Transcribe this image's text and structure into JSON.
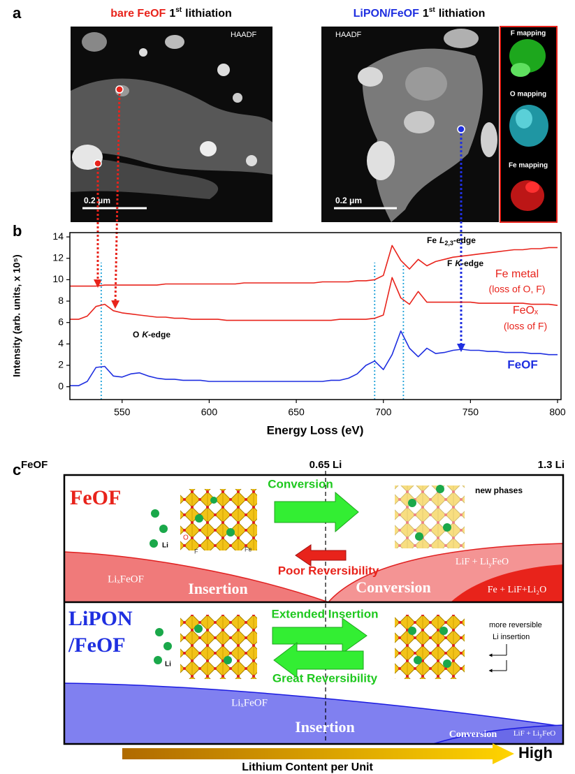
{
  "panel_labels": {
    "a": "a",
    "b": "b",
    "c": "c"
  },
  "panel_a": {
    "left": {
      "title": {
        "sample": "bare FeOF",
        "ordinal": "1",
        "suffix": "st",
        "rest": "lithiation"
      },
      "detector": "HAADF",
      "scale_bar": "0.2 μm"
    },
    "right": {
      "title": {
        "sample": "LiPON/FeOF",
        "ordinal": "1",
        "suffix": "st",
        "rest": "lithiation"
      },
      "detector": "HAADF",
      "scale_bar": "0.2 μm",
      "maps": [
        "F mapping",
        "O mapping",
        "Fe mapping"
      ]
    }
  },
  "chart_data": {
    "type": "line",
    "x_label": "Energy Loss (eV)",
    "y_label": "Intensity (arb. units, x 10⁵)",
    "xlim": [
      520,
      802
    ],
    "ylim": [
      -1.2,
      14.4
    ],
    "xticks": [
      550,
      600,
      650,
      700,
      750,
      800
    ],
    "yticks": [
      0,
      2,
      4,
      6,
      8,
      10,
      12,
      14
    ],
    "vlines": [
      538,
      695,
      711.5
    ],
    "edge_labels": [
      {
        "element": "O",
        "shell": "K",
        "suffix": "-edge"
      },
      {
        "element": "F",
        "shell": "K",
        "suffix": "-edge"
      },
      {
        "element": "Fe",
        "shell": "L",
        "sub": "2,3",
        "suffix": "-edge"
      }
    ],
    "x": [
      520,
      525,
      530,
      535,
      540,
      545,
      550,
      555,
      560,
      565,
      570,
      575,
      580,
      585,
      590,
      595,
      600,
      605,
      610,
      615,
      620,
      625,
      630,
      635,
      640,
      645,
      650,
      655,
      660,
      665,
      670,
      675,
      680,
      685,
      690,
      695,
      700,
      705,
      710,
      715,
      720,
      725,
      730,
      735,
      740,
      745,
      750,
      755,
      760,
      765,
      770,
      775,
      780,
      785,
      790,
      795,
      800
    ],
    "series": [
      {
        "name": "Fe metal",
        "note": "(loss of O, F)",
        "color": "#e8231b",
        "values": [
          9.4,
          9.4,
          9.4,
          9.4,
          9.5,
          9.5,
          9.5,
          9.5,
          9.5,
          9.5,
          9.5,
          9.6,
          9.6,
          9.6,
          9.6,
          9.6,
          9.6,
          9.6,
          9.6,
          9.6,
          9.7,
          9.7,
          9.7,
          9.7,
          9.7,
          9.7,
          9.7,
          9.7,
          9.7,
          9.8,
          9.8,
          9.8,
          9.8,
          9.9,
          9.9,
          10.0,
          10.4,
          13.2,
          11.8,
          11.0,
          11.9,
          11.3,
          11.7,
          11.9,
          12.1,
          12.2,
          12.3,
          12.4,
          12.5,
          12.6,
          12.7,
          12.8,
          12.8,
          12.9,
          12.9,
          13.0,
          13.0
        ]
      },
      {
        "name": "FeOₓ",
        "note": "(loss of F)",
        "color": "#e8231b",
        "values": [
          6.3,
          6.3,
          6.6,
          7.5,
          7.7,
          7.1,
          6.9,
          6.8,
          6.7,
          6.6,
          6.5,
          6.5,
          6.4,
          6.4,
          6.3,
          6.3,
          6.3,
          6.3,
          6.2,
          6.2,
          6.2,
          6.2,
          6.2,
          6.2,
          6.2,
          6.2,
          6.2,
          6.2,
          6.2,
          6.2,
          6.2,
          6.3,
          6.3,
          6.3,
          6.3,
          6.4,
          6.7,
          10.2,
          8.3,
          7.7,
          8.9,
          7.9,
          7.9,
          7.9,
          7.9,
          7.9,
          7.9,
          7.8,
          7.8,
          7.8,
          7.8,
          7.8,
          7.8,
          7.7,
          7.7,
          7.7,
          7.6
        ]
      },
      {
        "name": "FeOF",
        "color": "#1f2fe0",
        "values": [
          0.1,
          0.1,
          0.5,
          1.8,
          1.9,
          1.0,
          0.9,
          1.2,
          1.3,
          1.0,
          0.8,
          0.7,
          0.7,
          0.6,
          0.6,
          0.6,
          0.5,
          0.5,
          0.5,
          0.5,
          0.5,
          0.5,
          0.5,
          0.5,
          0.5,
          0.5,
          0.5,
          0.5,
          0.5,
          0.5,
          0.6,
          0.6,
          0.8,
          1.2,
          2.0,
          2.4,
          1.6,
          3.0,
          5.2,
          3.6,
          2.8,
          3.6,
          3.1,
          3.2,
          3.4,
          3.5,
          3.4,
          3.4,
          3.3,
          3.3,
          3.2,
          3.2,
          3.2,
          3.1,
          3.1,
          3.0,
          3.0
        ]
      }
    ]
  },
  "panel_c": {
    "axis_left": "FeOF",
    "axis_mid": "0.65 Li",
    "axis_right": "1.3 Li",
    "top": {
      "title": "FeOF",
      "forward": "Conversion",
      "backward": "Poor Reversibility",
      "ion": "Li",
      "atoms": [
        "O",
        "F",
        "Fe"
      ],
      "product_note": "new phases",
      "regions": {
        "left_phase": "LiₓFeOF",
        "left": "Insertion",
        "right": "Conversion",
        "right_phase": {
          "a": "LiF + Li",
          "sub": "y",
          "b": "FeO"
        },
        "far_right_phase": "Fe + LiF+Li₂O"
      }
    },
    "bottom": {
      "title": [
        "LiPON",
        "/FeOF"
      ],
      "forward": "Extended Insertion",
      "backward": "Great Reversibility",
      "ion": "Li",
      "note": [
        "more reversible",
        "Li insertion"
      ],
      "regions": {
        "left_phase": "LiₓFeOF",
        "left": "Insertion",
        "right": "Conversion",
        "right_phase": {
          "a": "LiF + Li",
          "sub": "y",
          "b": "FeO"
        }
      }
    },
    "arrow_label": "Lithium Content per Unit",
    "arrow_end": "High"
  }
}
